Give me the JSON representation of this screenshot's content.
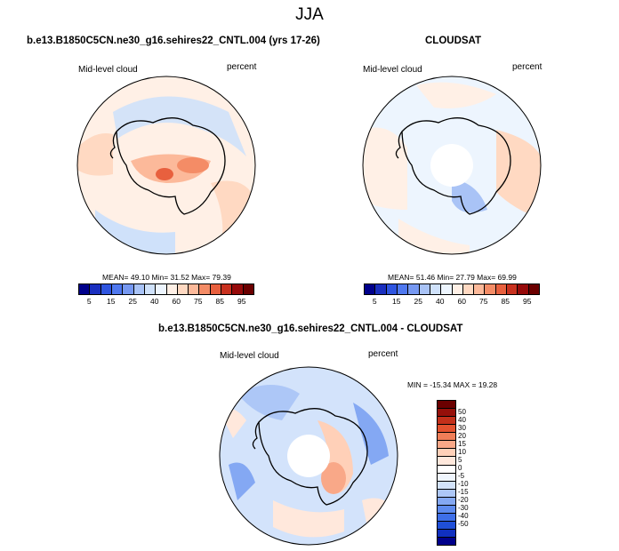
{
  "season": "JJA",
  "panels": [
    {
      "title": "b.e13.B1850C5CN.ne30_g16.sehires22_CNTL.004 (yrs 17-26)",
      "left_label": "Mid-level cloud",
      "right_label": "percent",
      "stats": "MEAN= 49.10  Min= 31.52  Max= 79.39"
    },
    {
      "title": "CLOUDSAT",
      "left_label": "Mid-level cloud",
      "right_label": "percent",
      "stats": "MEAN= 51.46  Min= 27.79  Max= 69.99"
    },
    {
      "title": "b.e13.B1850C5CN.ne30_g16.sehires22_CNTL.004 - CLOUDSAT",
      "left_label": "Mid-level cloud",
      "right_label": "percent",
      "stats": "MIN = -15.34 MAX =  19.28"
    }
  ],
  "colors": {
    "abs_scale": [
      "#00008b",
      "#1a2fbf",
      "#2f55e0",
      "#4f78ef",
      "#7698f1",
      "#a9c3f6",
      "#cfe1fa",
      "#edf5fe",
      "#fff0e6",
      "#ffd9c2",
      "#fcb99a",
      "#f48c66",
      "#e8603e",
      "#c8311f",
      "#960a0a",
      "#6b0000"
    ],
    "diff_scale": [
      "#00008b",
      "#1030c0",
      "#1f4fd8",
      "#3e6fe8",
      "#5e8bef",
      "#84a8f3",
      "#adc7f7",
      "#d3e3fb",
      "#f0f6fe",
      "#ffffff",
      "#ffe8dc",
      "#ffd0b8",
      "#f9a888",
      "#f07e58",
      "#e3522f",
      "#c3301a",
      "#96100a",
      "#6b0000"
    ],
    "land_outline": "#000000"
  },
  "chart_data": [
    {
      "type": "heatmap",
      "projection": "south-polar-stereographic",
      "variable": "Mid-level cloud",
      "units": "percent",
      "mean": 49.1,
      "min": 31.52,
      "max": 79.39,
      "colorbar_ticks": [
        "5",
        "15",
        "25",
        "40",
        "60",
        "75",
        "85",
        "95"
      ]
    },
    {
      "type": "heatmap",
      "projection": "south-polar-stereographic",
      "variable": "Mid-level cloud",
      "units": "percent",
      "mean": 51.46,
      "min": 27.79,
      "max": 69.99,
      "colorbar_ticks": [
        "5",
        "15",
        "25",
        "40",
        "60",
        "75",
        "85",
        "95"
      ]
    },
    {
      "type": "heatmap",
      "projection": "south-polar-stereographic",
      "variable": "Mid-level cloud",
      "units": "percent",
      "min": -15.34,
      "max": 19.28,
      "colorbar_ticks": [
        "50",
        "40",
        "30",
        "20",
        "15",
        "10",
        "5",
        "0",
        "-5",
        "-10",
        "-15",
        "-20",
        "-30",
        "-40",
        "-50"
      ]
    }
  ]
}
